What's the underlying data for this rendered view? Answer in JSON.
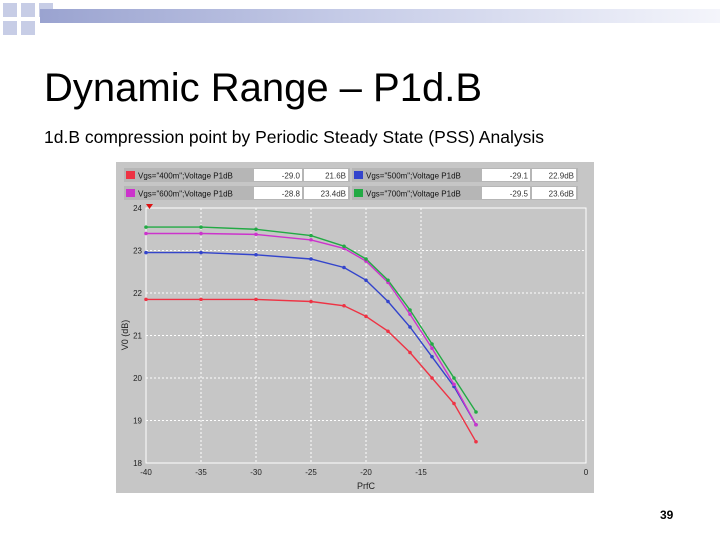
{
  "slide": {
    "title": "Dynamic Range – P1d.B",
    "subtitle": "1d.B compression point by Periodic Steady State (PSS) Analysis",
    "page_number": "39"
  },
  "chart_data": {
    "type": "line",
    "xlabel": "PrfC",
    "ylabel": "V0 (dB)",
    "xlim": [
      -40,
      0
    ],
    "ylim": [
      18,
      24
    ],
    "x_ticks": [
      "-40",
      "-35",
      "-30",
      "-25",
      "-20",
      "-15",
      "0"
    ],
    "y_ticks": [
      "18",
      "19",
      "20",
      "21",
      "22",
      "23",
      "24"
    ],
    "grid": true,
    "legend_position": "top",
    "legend": [
      {
        "name": "Vgs=\"400m\";Voltage P1dB",
        "col1": "-29.0",
        "col2": "21.6B",
        "color": "#ee3344"
      },
      {
        "name": "Vgs=\"500m\";Voltage P1dB",
        "col1": "-29.1",
        "col2": "22.9dB",
        "color": "#3344cc"
      },
      {
        "name": "Vgs=\"600m\";Voltage P1dB",
        "col1": "-28.8",
        "col2": "23.4dB",
        "color": "#cc33cc"
      },
      {
        "name": "Vgs=\"700m\";Voltage P1dB",
        "col1": "-29.5",
        "col2": "23.6dB",
        "color": "#22aa44"
      }
    ],
    "series": [
      {
        "name": "Vgs=\"400m\"",
        "color": "#ee3344",
        "x": [
          -40,
          -35,
          -30,
          -25,
          -22,
          -20,
          -18,
          -16,
          -14,
          -12,
          -10
        ],
        "y": [
          21.85,
          21.85,
          21.85,
          21.8,
          21.7,
          21.45,
          21.1,
          20.6,
          20.0,
          19.4,
          18.5
        ]
      },
      {
        "name": "Vgs=\"500m\"",
        "color": "#3344cc",
        "x": [
          -40,
          -35,
          -30,
          -25,
          -22,
          -20,
          -18,
          -16,
          -14,
          -12,
          -10
        ],
        "y": [
          22.95,
          22.95,
          22.9,
          22.8,
          22.6,
          22.3,
          21.8,
          21.2,
          20.5,
          19.8,
          18.9
        ]
      },
      {
        "name": "Vgs=\"600m\"",
        "color": "#cc33cc",
        "x": [
          -40,
          -35,
          -30,
          -25,
          -22,
          -20,
          -18,
          -16,
          -14,
          -12,
          -10
        ],
        "y": [
          23.4,
          23.4,
          23.38,
          23.25,
          23.05,
          22.75,
          22.25,
          21.5,
          20.7,
          19.85,
          18.9
        ]
      },
      {
        "name": "Vgs=\"700m\"",
        "color": "#22aa44",
        "x": [
          -40,
          -35,
          -30,
          -25,
          -22,
          -20,
          -18,
          -16,
          -14,
          -12,
          -10
        ],
        "y": [
          23.55,
          23.55,
          23.5,
          23.35,
          23.1,
          22.8,
          22.3,
          21.6,
          20.8,
          20.0,
          19.2
        ]
      }
    ]
  }
}
